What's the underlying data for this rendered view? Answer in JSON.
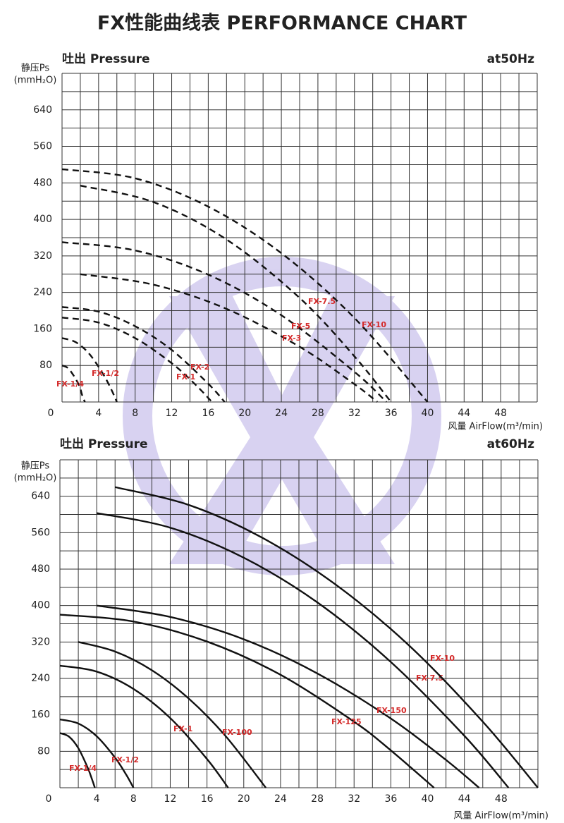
{
  "title": "FX性能曲线表 PERFORMANCE CHART",
  "chart_data": [
    {
      "type": "line",
      "title": "吐出 Pressure",
      "subtitle": "at50Hz",
      "y_label": "静压Ps",
      "y_unit": "(mmH₂O)",
      "x_label": "风量 AirFlow(m³/min)",
      "xlim": [
        0,
        52
      ],
      "ylim": [
        0,
        720
      ],
      "xticks": [
        4,
        8,
        12,
        16,
        20,
        24,
        28,
        32,
        36,
        40,
        44,
        48
      ],
      "yticks": [
        0,
        80,
        160,
        240,
        320,
        400,
        480,
        560,
        640
      ],
      "grid": {
        "x_step": 2,
        "y_step": 40
      },
      "line_style": "dashed",
      "series": [
        {
          "name": "FX-1/4",
          "color": "#111111",
          "x": [
            0,
            0.6,
            1.2,
            1.9,
            2.2,
            2.5
          ],
          "values": [
            80,
            75,
            60,
            35,
            15,
            0
          ]
        },
        {
          "name": "FX-1/2",
          "color": "#111111",
          "x": [
            0,
            1.5,
            3,
            4.5,
            5.4,
            6
          ],
          "values": [
            140,
            131,
            105,
            61,
            27,
            0
          ]
        },
        {
          "name": "FX-1",
          "color": "#111111",
          "x": [
            0,
            4,
            8,
            12,
            14.7,
            16.4
          ],
          "values": [
            185,
            174,
            140,
            85,
            36,
            0
          ]
        },
        {
          "name": "FX-2",
          "color": "#111111",
          "x": [
            0,
            4,
            8,
            12,
            16,
            17.8
          ],
          "values": [
            208,
            198,
            166,
            114,
            40,
            0
          ]
        },
        {
          "name": "FX-3",
          "color": "#111111",
          "x": [
            2,
            10,
            18,
            26,
            32,
            34.5
          ],
          "values": [
            280,
            257,
            204,
            121,
            39,
            0
          ]
        },
        {
          "name": "FX-5",
          "color": "#111111",
          "x": [
            0,
            8,
            16,
            24,
            32,
            35.5
          ],
          "values": [
            350,
            332,
            279,
            190,
            66,
            0
          ]
        },
        {
          "name": "FX-7.5",
          "color": "#111111",
          "x": [
            2,
            10,
            18,
            26,
            32,
            36
          ],
          "values": [
            474,
            438,
            356,
            228,
            100,
            0
          ]
        },
        {
          "name": "FX-10",
          "color": "#111111",
          "x": [
            0,
            8,
            16,
            24,
            32,
            40
          ],
          "values": [
            510,
            490,
            428,
            326,
            184,
            0
          ]
        }
      ]
    },
    {
      "type": "line",
      "title": "吐出 Pressure",
      "subtitle": "at60Hz",
      "y_label": "静压Ps",
      "y_unit": "(mmH₂O)",
      "x_label": "风量 AirFlow(m³/min)",
      "xlim": [
        0,
        52
      ],
      "ylim": [
        0,
        720
      ],
      "xticks": [
        4,
        8,
        12,
        16,
        20,
        24,
        28,
        32,
        36,
        40,
        44,
        48
      ],
      "yticks": [
        0,
        80,
        160,
        240,
        320,
        400,
        480,
        560,
        640
      ],
      "grid": {
        "x_step": 2,
        "y_step": 40
      },
      "line_style": "solid",
      "series": [
        {
          "name": "FX-1/4",
          "color": "#111111",
          "x": [
            0,
            1,
            2,
            3,
            3.5,
            3.8
          ],
          "values": [
            120,
            112,
            87,
            45,
            18,
            0
          ]
        },
        {
          "name": "FX-1/2",
          "color": "#111111",
          "x": [
            0,
            2,
            4,
            6,
            7.2,
            8
          ],
          "values": [
            150,
            141,
            113,
            66,
            29,
            0
          ]
        },
        {
          "name": "FX-1",
          "color": "#111111",
          "x": [
            0,
            4,
            8,
            12,
            16,
            18.3
          ],
          "values": [
            268,
            255,
            217,
            153,
            63,
            0
          ]
        },
        {
          "name": "FX-100",
          "color": "#111111",
          "x": [
            2,
            6,
            10,
            14,
            18,
            22.4
          ],
          "values": [
            320,
            299,
            258,
            196,
            114,
            0
          ]
        },
        {
          "name": "FX-125",
          "color": "#111111",
          "x": [
            0,
            8,
            16,
            24,
            32,
            36,
            40.7
          ],
          "values": [
            380,
            365,
            321,
            248,
            145,
            82,
            0
          ]
        },
        {
          "name": "FX-150",
          "color": "#111111",
          "x": [
            4,
            12,
            20,
            28,
            36,
            42,
            45.6
          ],
          "values": [
            400,
            375,
            326,
            251,
            152,
            61,
            0
          ]
        },
        {
          "name": "FX-7.5",
          "color": "#111111",
          "x": [
            4,
            12,
            20,
            28,
            36,
            44,
            48.8
          ],
          "values": [
            603,
            571,
            505,
            407,
            276,
            114,
            0
          ]
        },
        {
          "name": "FX-10",
          "color": "#111111",
          "x": [
            6,
            14,
            22,
            30,
            38,
            46,
            52
          ],
          "values": [
            660,
            621,
            549,
            446,
            312,
            145,
            0
          ]
        }
      ]
    }
  ]
}
